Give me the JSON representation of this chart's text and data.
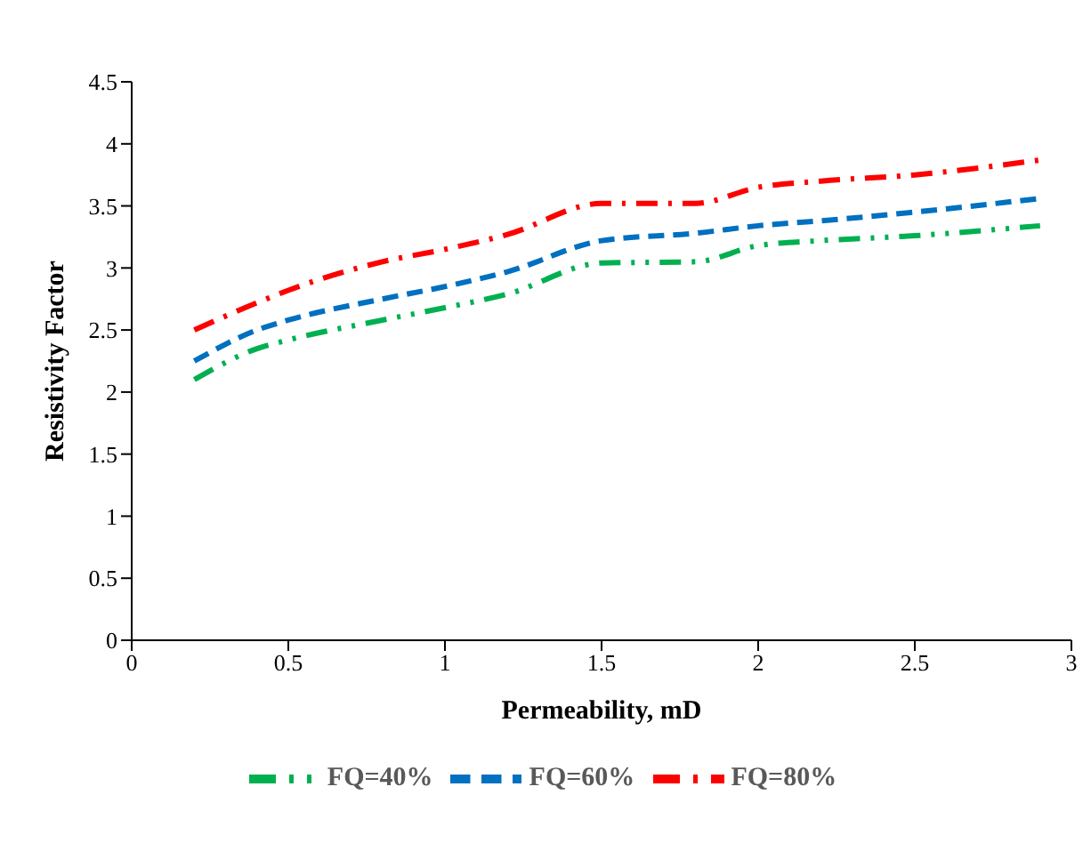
{
  "chart_data": {
    "type": "line",
    "xlabel": "Permeability, mD",
    "ylabel": "Resistivity Factor",
    "x": [
      0.2,
      0.4,
      0.5,
      0.8,
      1.0,
      1.2,
      1.5,
      1.8,
      2.0,
      2.2,
      2.5,
      2.9
    ],
    "series": [
      {
        "name": "FQ=40%",
        "color": "#00b050",
        "line_style": "dashdotdot",
        "values": [
          2.1,
          2.35,
          2.42,
          2.58,
          2.68,
          2.79,
          3.04,
          3.05,
          3.18,
          3.22,
          3.26,
          3.34
        ]
      },
      {
        "name": "FQ=60%",
        "color": "#0070c0",
        "line_style": "dashed",
        "values": [
          2.25,
          2.5,
          2.58,
          2.75,
          2.85,
          2.97,
          3.22,
          3.28,
          3.34,
          3.38,
          3.45,
          3.56
        ]
      },
      {
        "name": "FQ=80%",
        "color": "#ff0000",
        "line_style": "dashdot",
        "values": [
          2.5,
          2.72,
          2.82,
          3.05,
          3.15,
          3.27,
          3.52,
          3.52,
          3.65,
          3.7,
          3.75,
          3.87
        ]
      }
    ],
    "xlim": [
      0,
      3
    ],
    "xticks": [
      0,
      0.5,
      1,
      1.5,
      2,
      2.5,
      3
    ],
    "ylim": [
      0,
      4.5
    ],
    "yticks": [
      0,
      0.5,
      1,
      1.5,
      2,
      2.5,
      3,
      3.5,
      4,
      4.5
    ],
    "grid": false,
    "legend": "bottom",
    "marker": "none"
  }
}
